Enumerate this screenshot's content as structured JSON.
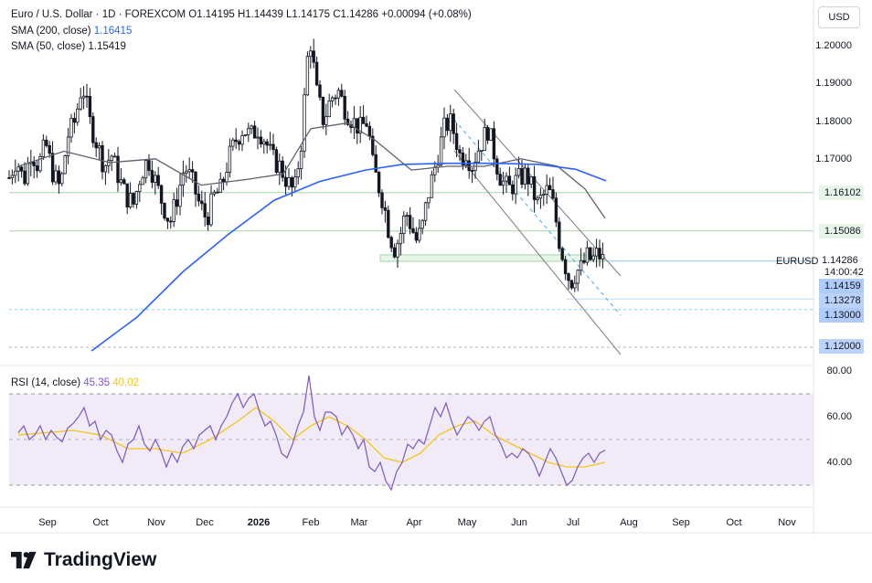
{
  "header": {
    "symbol_line": "Euro / U.S. Dollar · 1D · FOREXCOM  O1.14195  H1.14439  L1.14175  C1.14286  +0.00094 (+0.08%)",
    "sma200_label": "SMA (200, close)",
    "sma200_value": "1.16415",
    "sma50_label": "SMA (50, close)",
    "sma50_value": "1.15419",
    "rsi_label": "RSI (14, close)",
    "rsi_value": "45.35",
    "rsi_ma_value": "40.02",
    "currency_button": "USD"
  },
  "price_axis": {
    "ticks": [
      "1.20000",
      "1.19000",
      "1.18000",
      "1.17000",
      "1.13000",
      "1.12000"
    ],
    "level_tags": [
      "1.16102",
      "1.15086"
    ],
    "blue_tags": [
      "1.14159",
      "1.13278",
      "1.13000",
      "1.12000"
    ],
    "symbol_tag": "EURUSD",
    "price_tag": "1.14286",
    "countdown": "14:00:42"
  },
  "rsi_axis": {
    "ticks": [
      "80.00",
      "60.00",
      "40.00"
    ]
  },
  "time_axis": {
    "labels": [
      "Sep",
      "Oct",
      "Nov",
      "Dec",
      "2026",
      "Feb",
      "Mar",
      "Apr",
      "May",
      "Jun",
      "Jul",
      "Aug",
      "Sep",
      "Oct",
      "Nov"
    ]
  },
  "brand": {
    "name": "TradingView"
  },
  "colors": {
    "sma200": "#2962ff",
    "sma50": "#5d606b",
    "rsi_line": "#7e57c2",
    "rsi_ma": "#f5c519",
    "candles": "#131722",
    "support_green": "#a5d6a7"
  },
  "chart_data": {
    "type": "candlestick",
    "title": "Euro / U.S. Dollar · 1D · FOREXCOM",
    "y_range": [
      1.117,
      1.206
    ],
    "rsi_range": [
      25,
      82
    ],
    "close_path": [
      [
        0,
        1.165
      ],
      [
        8,
        1.17
      ],
      [
        16,
        1.164
      ],
      [
        24,
        1.172
      ],
      [
        32,
        1.168
      ],
      [
        40,
        1.174
      ],
      [
        48,
        1.166
      ],
      [
        56,
        1.162
      ],
      [
        64,
        1.176
      ],
      [
        72,
        1.18
      ],
      [
        80,
        1.19
      ],
      [
        88,
        1.18
      ],
      [
        96,
        1.174
      ],
      [
        104,
        1.168
      ],
      [
        112,
        1.171
      ],
      [
        120,
        1.165
      ],
      [
        128,
        1.16
      ],
      [
        136,
        1.158
      ],
      [
        144,
        1.166
      ],
      [
        152,
        1.17
      ],
      [
        160,
        1.164
      ],
      [
        168,
        1.158
      ],
      [
        176,
        1.153
      ],
      [
        184,
        1.16
      ],
      [
        192,
        1.168
      ],
      [
        200,
        1.164
      ],
      [
        208,
        1.158
      ],
      [
        216,
        1.154
      ],
      [
        224,
        1.16
      ],
      [
        232,
        1.162
      ],
      [
        240,
        1.17
      ],
      [
        248,
        1.175
      ],
      [
        256,
        1.178
      ],
      [
        264,
        1.176
      ],
      [
        272,
        1.178
      ],
      [
        280,
        1.175
      ],
      [
        288,
        1.17
      ],
      [
        296,
        1.168
      ],
      [
        304,
        1.164
      ],
      [
        312,
        1.161
      ],
      [
        320,
        1.175
      ],
      [
        326,
        1.196
      ],
      [
        330,
        1.201
      ],
      [
        336,
        1.188
      ],
      [
        344,
        1.18
      ],
      [
        352,
        1.186
      ],
      [
        360,
        1.188
      ],
      [
        368,
        1.183
      ],
      [
        376,
        1.18
      ],
      [
        384,
        1.178
      ],
      [
        392,
        1.18
      ],
      [
        398,
        1.168
      ],
      [
        404,
        1.163
      ],
      [
        410,
        1.158
      ],
      [
        416,
        1.15
      ],
      [
        422,
        1.146
      ],
      [
        428,
        1.15
      ],
      [
        434,
        1.156
      ],
      [
        440,
        1.152
      ],
      [
        446,
        1.148
      ],
      [
        452,
        1.152
      ],
      [
        458,
        1.16
      ],
      [
        464,
        1.166
      ],
      [
        470,
        1.172
      ],
      [
        476,
        1.178
      ],
      [
        482,
        1.18
      ],
      [
        488,
        1.176
      ],
      [
        494,
        1.17
      ],
      [
        500,
        1.172
      ],
      [
        506,
        1.168
      ],
      [
        512,
        1.172
      ],
      [
        518,
        1.175
      ],
      [
        524,
        1.178
      ],
      [
        530,
        1.172
      ],
      [
        536,
        1.166
      ],
      [
        542,
        1.163
      ],
      [
        548,
        1.162
      ],
      [
        554,
        1.164
      ],
      [
        560,
        1.165
      ],
      [
        566,
        1.166
      ],
      [
        572,
        1.162
      ],
      [
        578,
        1.158
      ],
      [
        584,
        1.16
      ],
      [
        590,
        1.162
      ],
      [
        596,
        1.157
      ],
      [
        602,
        1.148
      ],
      [
        608,
        1.142
      ],
      [
        614,
        1.137
      ],
      [
        620,
        1.14
      ],
      [
        626,
        1.141
      ],
      [
        632,
        1.144
      ],
      [
        638,
        1.143
      ],
      [
        644,
        1.145
      ],
      [
        650,
        1.1429
      ]
    ],
    "sma200_path": [
      [
        90,
        1.119
      ],
      [
        140,
        1.128
      ],
      [
        190,
        1.14
      ],
      [
        240,
        1.15
      ],
      [
        290,
        1.159
      ],
      [
        340,
        1.164
      ],
      [
        390,
        1.167
      ],
      [
        430,
        1.1685
      ],
      [
        480,
        1.1688
      ],
      [
        530,
        1.1688
      ],
      [
        580,
        1.1685
      ],
      [
        620,
        1.1672
      ],
      [
        653,
        1.16415
      ]
    ],
    "sma50_path": [
      [
        10,
        1.168
      ],
      [
        60,
        1.172
      ],
      [
        110,
        1.169
      ],
      [
        160,
        1.17
      ],
      [
        210,
        1.163
      ],
      [
        260,
        1.1645
      ],
      [
        300,
        1.166
      ],
      [
        330,
        1.178
      ],
      [
        370,
        1.1795
      ],
      [
        400,
        1.175
      ],
      [
        440,
        1.167
      ],
      [
        480,
        1.168
      ],
      [
        520,
        1.168
      ],
      [
        560,
        1.17
      ],
      [
        600,
        1.168
      ],
      [
        630,
        1.162
      ],
      [
        652,
        1.1542
      ]
    ],
    "levels": [
      {
        "price": 1.16102,
        "style": "solid-green"
      },
      {
        "price": 1.15086,
        "style": "solid-green"
      },
      {
        "price": 1.14286,
        "style": "current"
      },
      {
        "price": 1.13278,
        "style": "solid-blue-light"
      },
      {
        "price": 1.13,
        "style": "dashed-blue"
      },
      {
        "price": 1.12,
        "style": "dashed-grey"
      }
    ],
    "rsi_path": [
      [
        10,
        53
      ],
      [
        16,
        56
      ],
      [
        22,
        50
      ],
      [
        28,
        52
      ],
      [
        34,
        56
      ],
      [
        40,
        50
      ],
      [
        46,
        54
      ],
      [
        52,
        51
      ],
      [
        58,
        49
      ],
      [
        64,
        55
      ],
      [
        70,
        57
      ],
      [
        76,
        60
      ],
      [
        82,
        64
      ],
      [
        88,
        56
      ],
      [
        94,
        58
      ],
      [
        100,
        50
      ],
      [
        106,
        54
      ],
      [
        112,
        52
      ],
      [
        118,
        45
      ],
      [
        124,
        40
      ],
      [
        130,
        48
      ],
      [
        136,
        50
      ],
      [
        142,
        56
      ],
      [
        148,
        48
      ],
      [
        154,
        45
      ],
      [
        160,
        50
      ],
      [
        166,
        45
      ],
      [
        172,
        38
      ],
      [
        178,
        44
      ],
      [
        184,
        40
      ],
      [
        190,
        47
      ],
      [
        196,
        50
      ],
      [
        202,
        46
      ],
      [
        208,
        52
      ],
      [
        214,
        54
      ],
      [
        220,
        56
      ],
      [
        226,
        50
      ],
      [
        232,
        56
      ],
      [
        238,
        60
      ],
      [
        244,
        66
      ],
      [
        250,
        70
      ],
      [
        256,
        64
      ],
      [
        262,
        68
      ],
      [
        268,
        70
      ],
      [
        274,
        62
      ],
      [
        280,
        56
      ],
      [
        286,
        58
      ],
      [
        292,
        52
      ],
      [
        298,
        44
      ],
      [
        304,
        42
      ],
      [
        310,
        48
      ],
      [
        316,
        56
      ],
      [
        322,
        62
      ],
      [
        328,
        78
      ],
      [
        334,
        60
      ],
      [
        340,
        54
      ],
      [
        346,
        62
      ],
      [
        352,
        62
      ],
      [
        358,
        60
      ],
      [
        364,
        52
      ],
      [
        370,
        56
      ],
      [
        376,
        52
      ],
      [
        382,
        46
      ],
      [
        388,
        50
      ],
      [
        394,
        38
      ],
      [
        400,
        36
      ],
      [
        406,
        40
      ],
      [
        412,
        32
      ],
      [
        418,
        28
      ],
      [
        424,
        36
      ],
      [
        430,
        40
      ],
      [
        436,
        48
      ],
      [
        442,
        46
      ],
      [
        448,
        50
      ],
      [
        454,
        48
      ],
      [
        460,
        56
      ],
      [
        466,
        64
      ],
      [
        472,
        60
      ],
      [
        478,
        66
      ],
      [
        484,
        58
      ],
      [
        490,
        52
      ],
      [
        496,
        56
      ],
      [
        502,
        60
      ],
      [
        508,
        58
      ],
      [
        514,
        54
      ],
      [
        520,
        58
      ],
      [
        526,
        60
      ],
      [
        532,
        52
      ],
      [
        538,
        48
      ],
      [
        544,
        42
      ],
      [
        550,
        44
      ],
      [
        556,
        42
      ],
      [
        562,
        46
      ],
      [
        568,
        44
      ],
      [
        574,
        40
      ],
      [
        580,
        34
      ],
      [
        586,
        40
      ],
      [
        592,
        46
      ],
      [
        598,
        42
      ],
      [
        604,
        36
      ],
      [
        610,
        30
      ],
      [
        616,
        32
      ],
      [
        622,
        38
      ],
      [
        628,
        42
      ],
      [
        634,
        44
      ],
      [
        640,
        40
      ],
      [
        646,
        44
      ],
      [
        652,
        45.35
      ]
    ],
    "rsi_ma_path": [
      [
        10,
        52
      ],
      [
        40,
        53
      ],
      [
        70,
        54
      ],
      [
        100,
        52
      ],
      [
        130,
        46
      ],
      [
        160,
        46
      ],
      [
        190,
        44
      ],
      [
        220,
        50
      ],
      [
        250,
        58
      ],
      [
        270,
        64
      ],
      [
        290,
        58
      ],
      [
        310,
        50
      ],
      [
        330,
        56
      ],
      [
        350,
        60
      ],
      [
        370,
        56
      ],
      [
        390,
        50
      ],
      [
        410,
        42
      ],
      [
        430,
        40
      ],
      [
        450,
        44
      ],
      [
        470,
        52
      ],
      [
        490,
        56
      ],
      [
        510,
        58
      ],
      [
        530,
        52
      ],
      [
        550,
        48
      ],
      [
        570,
        44
      ],
      [
        590,
        40
      ],
      [
        610,
        38
      ],
      [
        630,
        38
      ],
      [
        652,
        40.02
      ]
    ]
  }
}
